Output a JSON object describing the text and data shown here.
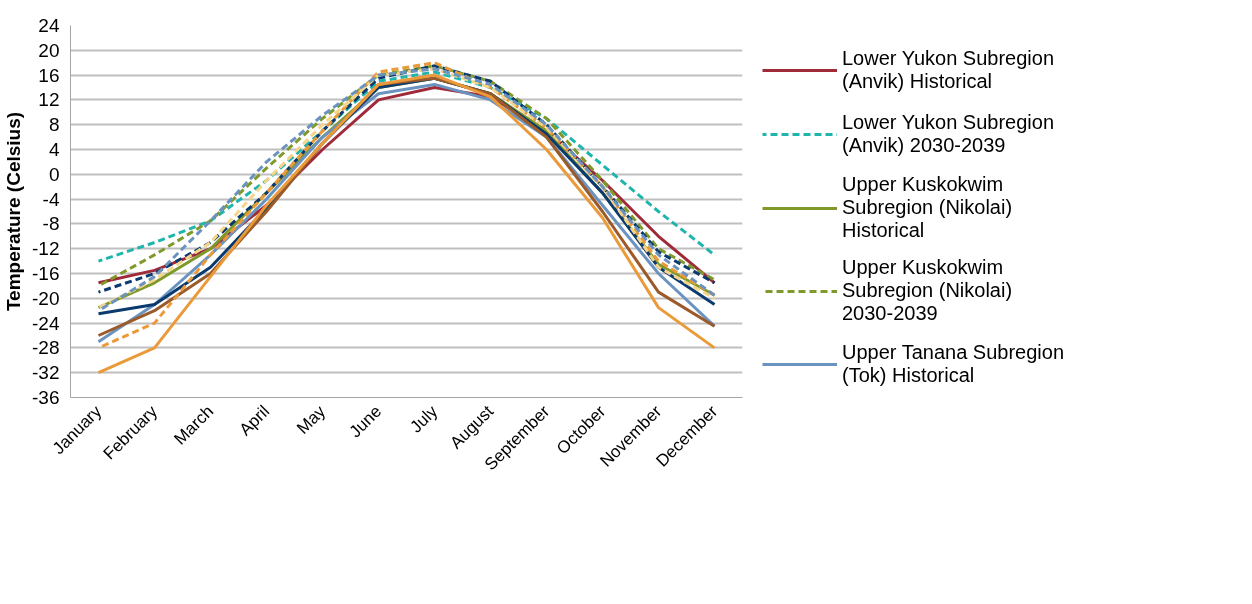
{
  "chart_data": {
    "type": "line",
    "ylabel": "Temperature (Celsius)",
    "categories": [
      "January",
      "February",
      "March",
      "April",
      "May",
      "June",
      "July",
      "August",
      "September",
      "October",
      "November",
      "December"
    ],
    "ylim": [
      -36,
      24
    ],
    "yticks": [
      -36,
      -32,
      -28,
      -24,
      -20,
      -16,
      -12,
      -8,
      -4,
      0,
      4,
      8,
      12,
      16,
      20,
      24
    ],
    "grid": "y",
    "legend": "right",
    "marker": "none",
    "series": [
      {
        "name": "Lower Yukon Subregion (Anvik) Historical",
        "color": "#9e2a3a",
        "line_style": "solid",
        "values": [
          -17.5,
          -15.5,
          -12,
          -5,
          4,
          12,
          14,
          12.5,
          7,
          -1,
          -10,
          -17.5
        ]
      },
      {
        "name": "Lower Yukon Subregion (Anvik) 2030-2039",
        "color": "#1fb5ad",
        "line_style": "dashed",
        "values": [
          -14,
          -11,
          -7.5,
          -1,
          7,
          15,
          16.5,
          14,
          9,
          1.5,
          -6,
          -13
        ]
      },
      {
        "name": "Upper Kuskokwim Subregion (Nikolai) Historical",
        "color": "#7f9a2a",
        "line_style": "solid",
        "values": [
          -21.5,
          -17.5,
          -12,
          -3,
          6,
          14,
          15.5,
          13,
          7,
          -3,
          -14.5,
          -19.5
        ]
      },
      {
        "name": "Upper Kuskokwim Subregion (Nikolai) 2030-2039",
        "color": "#7f9a2a",
        "line_style": "dashed",
        "values": [
          -18,
          -13,
          -7.5,
          1,
          9,
          16,
          17.5,
          15,
          9,
          -1,
          -12,
          -17
        ]
      },
      {
        "name": "Upper Tanana Subregion (Tok) Historical",
        "color": "#6b93c0",
        "line_style": "solid",
        "values": [
          -27,
          -21,
          -13,
          -4,
          6,
          13,
          14.5,
          12,
          6,
          -5,
          -16,
          -24.5
        ]
      },
      {
        "color": "#0b3a6e",
        "line_style": "solid",
        "values": [
          -22.5,
          -21,
          -15,
          -5.5,
          5,
          14,
          15.5,
          13,
          6.5,
          -3,
          -15,
          -21
        ]
      },
      {
        "color": "#0b3a6e",
        "line_style": "dashed",
        "values": [
          -19,
          -16,
          -11,
          -3,
          7,
          15.5,
          17.5,
          15,
          8,
          -2,
          -12.5,
          -17.5
        ]
      },
      {
        "color": "#9b5a2a",
        "line_style": "solid",
        "values": [
          -26,
          -22,
          -16,
          -6,
          5,
          14.5,
          15.5,
          13,
          6,
          -6,
          -19,
          -24.5
        ]
      },
      {
        "color": "#eb9a3a",
        "line_style": "solid",
        "values": [
          -32,
          -28,
          -16.5,
          -5,
          5,
          14.5,
          16,
          12.5,
          4,
          -7,
          -21.5,
          -28
        ]
      },
      {
        "color": "#eb9a3a",
        "line_style": "dashed",
        "values": [
          -28,
          -24,
          -13,
          -3,
          7,
          16.5,
          18,
          14,
          7.5,
          -2,
          -14,
          -19.5
        ]
      },
      {
        "color": "#f5d58a",
        "line_style": "dashed",
        "values": [
          -21.5,
          -17,
          -11,
          -1,
          8,
          16,
          17,
          14,
          7.5,
          -2,
          -15,
          -20
        ]
      },
      {
        "color": "#6b93c0",
        "line_style": "dashed",
        "values": [
          -22,
          -16.5,
          -7.5,
          2,
          9.5,
          16,
          17,
          14.5,
          8,
          -2,
          -13,
          -19.5
        ]
      }
    ]
  }
}
